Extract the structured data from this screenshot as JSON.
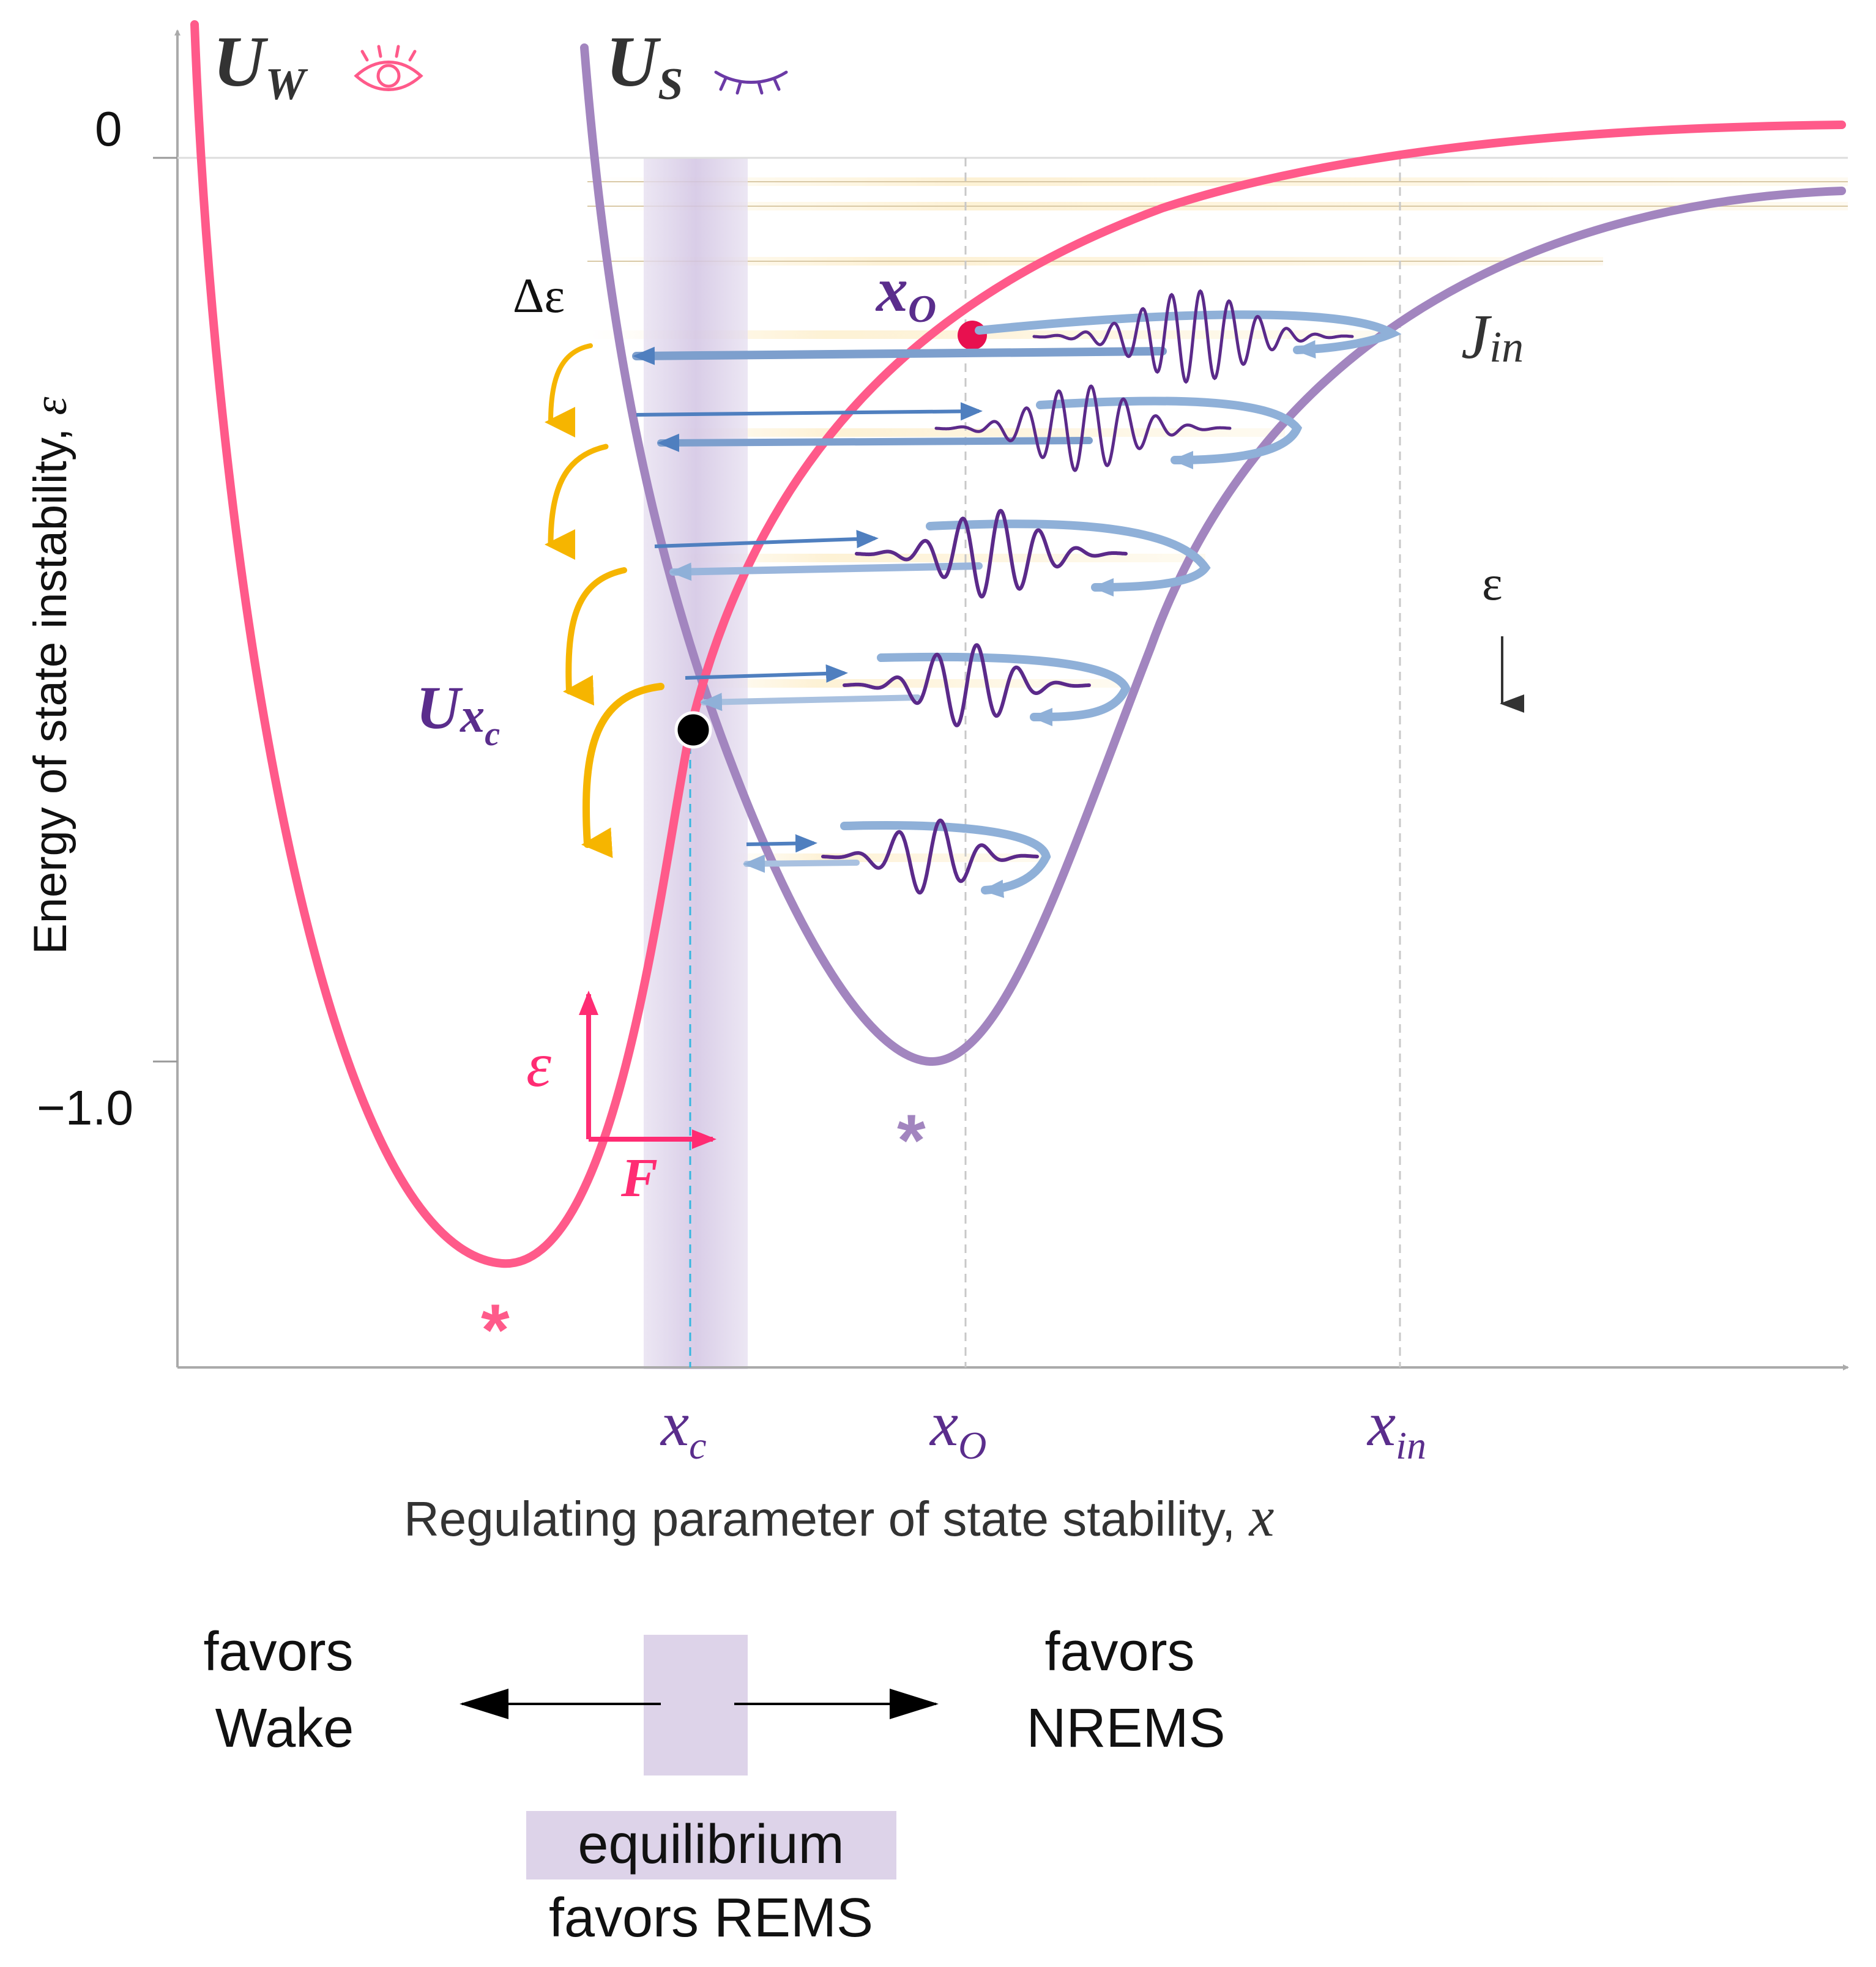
{
  "axes": {
    "y_title_prefix": "Energy of state instability, ",
    "y_title_symbol": "ε",
    "x_title_prefix": "Regulating parameter of state stability, ",
    "x_title_symbol": "x",
    "y_tick_top": "0",
    "y_tick_bottom": "−1.0"
  },
  "curves": {
    "uw_main": "U",
    "uw_sub": "W",
    "us_main": "U",
    "us_sub": "S",
    "uxc_main": "U",
    "uxc_sub": "x",
    "uxc_subsub": "c"
  },
  "markers": {
    "min_star_w": "*",
    "min_star_s": "*"
  },
  "labels": {
    "delta_eps": "Δε",
    "xo_main": "x",
    "xo_sub": "O",
    "jin_main": "J",
    "jin_sub": "in",
    "eps_arrow": "ε",
    "vec_eps": "ε",
    "vec_f": "F"
  },
  "x_ticks": [
    {
      "main": "x",
      "sub": "c"
    },
    {
      "main": "x",
      "sub": "O"
    },
    {
      "main": "x",
      "sub": "in"
    }
  ],
  "legend": {
    "left_line1": "favors",
    "left_line2": "Wake",
    "right_line1": "favors",
    "right_line2": "NREMS",
    "center_line1": "equilibrium",
    "center_line2": "favors REMS"
  },
  "colors": {
    "wake": "#ff5a8a",
    "sleep": "#a285bf",
    "label_purple": "#5a2d8c",
    "gold": "#f6b500",
    "blue": "#4f7fbf",
    "wave": "#5b2a8a",
    "band": "#ddd3e9"
  }
}
